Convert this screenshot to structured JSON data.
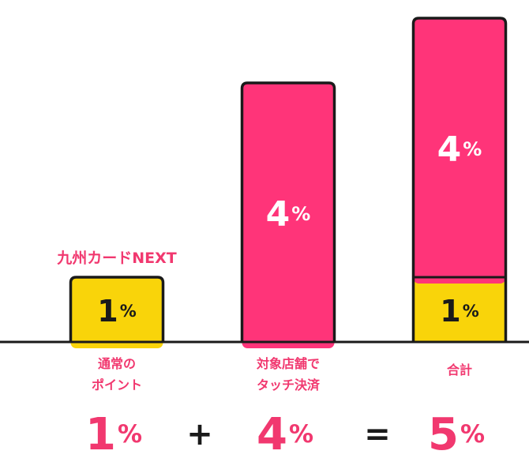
{
  "chart_data": {
    "type": "bar",
    "stacked": true,
    "categories": [
      "通常のポイント",
      "対象店舗でタッチ決済",
      "合計"
    ],
    "category_lines": [
      [
        "通常の",
        "ポイント"
      ],
      [
        "対象店舗で",
        "タッチ決済"
      ],
      [
        "合計"
      ]
    ],
    "series": [
      {
        "name": "九州カードNEXT",
        "values": [
          1,
          0,
          1
        ],
        "value_labels": [
          "1%",
          "",
          "1%"
        ]
      },
      {
        "name": "",
        "values": [
          0,
          4,
          4
        ],
        "value_labels": [
          "",
          "4%",
          "4%"
        ]
      }
    ],
    "ylim": [
      0,
      5
    ],
    "annotations": {
      "first_bar_caption": "九州カードNEXT"
    },
    "equation": {
      "terms": [
        "1%",
        "4%",
        "5%"
      ],
      "operators": [
        "+",
        "="
      ]
    },
    "colors": {
      "yellow": "#F9D40A",
      "pink": "#FF3479",
      "outline": "#1A1A1A",
      "text_pink": "#F1386F",
      "white": "#FFFFFF"
    }
  }
}
